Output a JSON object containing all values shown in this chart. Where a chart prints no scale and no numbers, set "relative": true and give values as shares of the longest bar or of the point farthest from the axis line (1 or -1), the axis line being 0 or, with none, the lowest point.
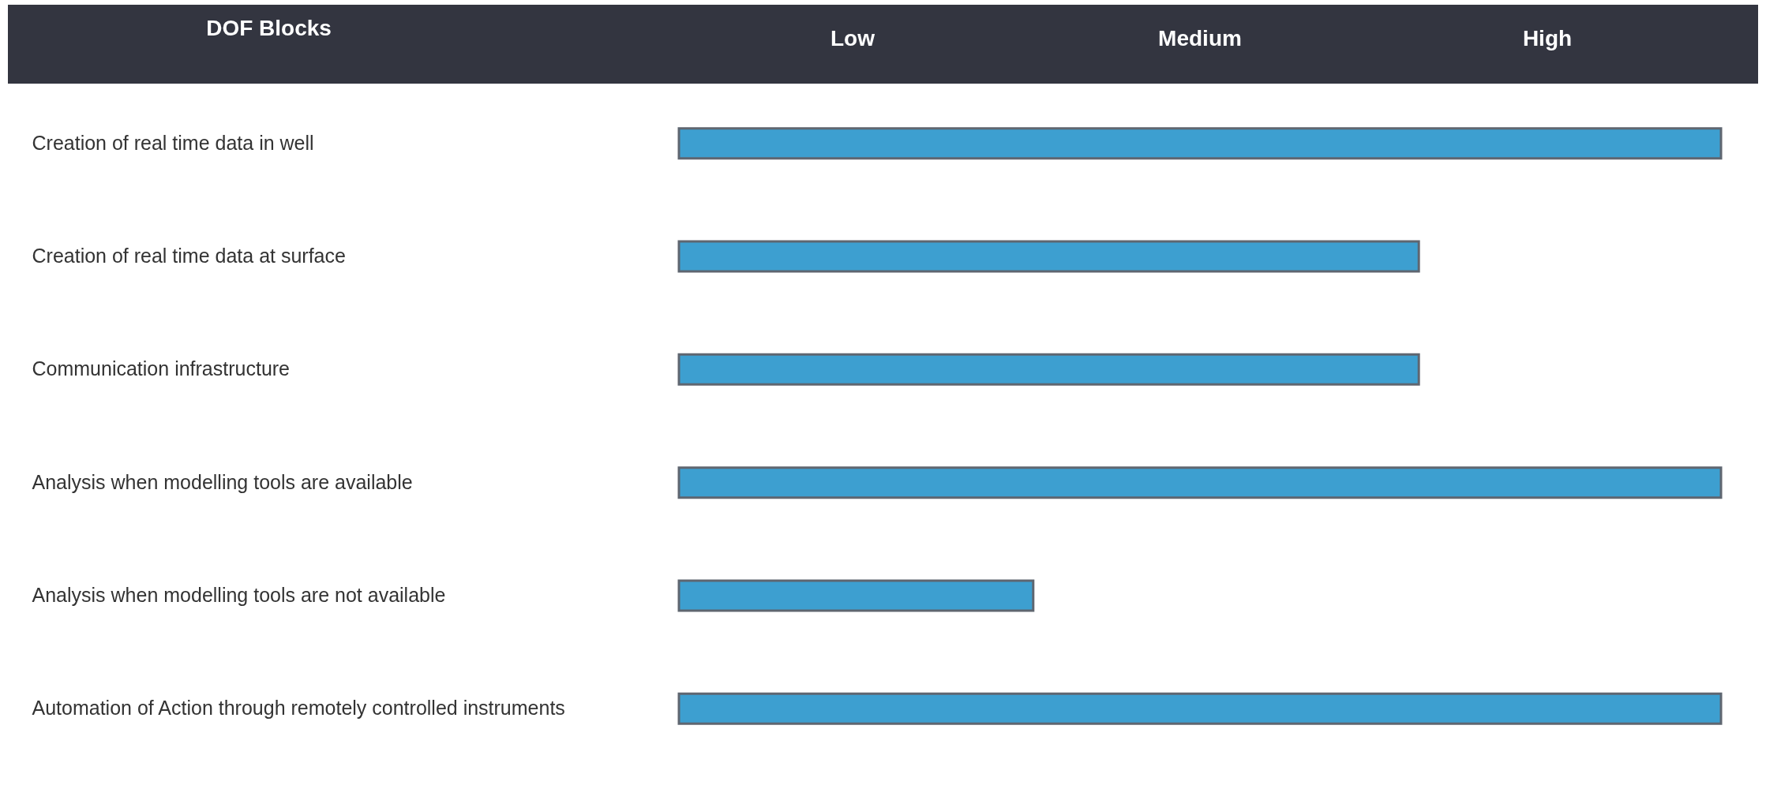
{
  "chart_data": {
    "type": "bar",
    "orientation": "horizontal",
    "relative": true,
    "ylabel": "DOF Blocks",
    "categories": [
      "Creation of real time data in well",
      "Creation of real time data at surface",
      "Communication infrastructure",
      "Analysis when modelling tools are available",
      "Analysis when modelling tools are not available",
      "Automation of Action through remotely controlled instruments"
    ],
    "values": [
      1,
      0.71,
      0.71,
      1,
      0.34,
      1
    ],
    "color": "#3d9fd0",
    "annotations": [
      "Low",
      "Medium",
      "High"
    ]
  }
}
